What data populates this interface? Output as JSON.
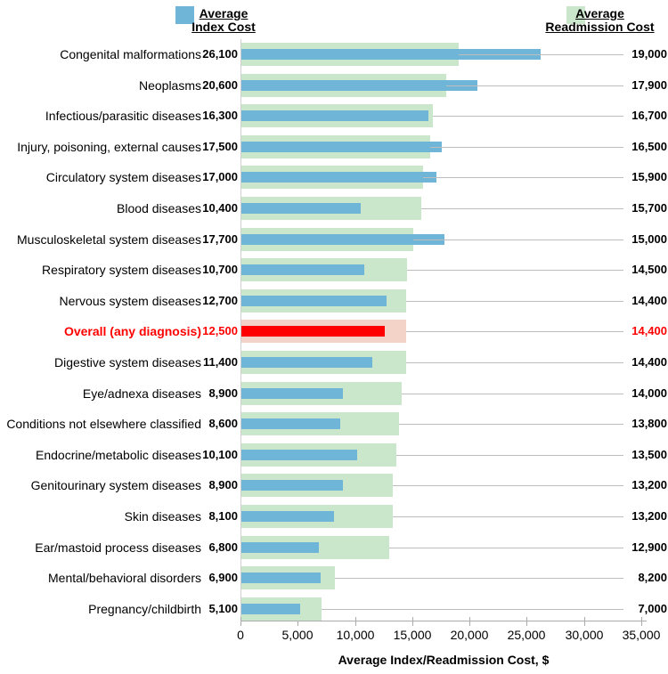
{
  "legend": {
    "index_cost": {
      "line1": "Average",
      "line2": "Index Cost"
    },
    "readmission_cost": {
      "line1": "Average",
      "line2": "Readmission Cost"
    }
  },
  "colors": {
    "index_bar": "#6fb5d8",
    "readmission_bar": "#cae6cb",
    "highlight_index_bar": "#ff0000",
    "highlight_readmission_bar": "#f3d2c8",
    "highlight_text": "#ff0000",
    "leader_line": "#bdbdbd",
    "axis_line": "#ababab"
  },
  "chart_data": {
    "type": "bar",
    "orientation": "horizontal",
    "title": "",
    "xlabel": "Average Index/Readmission Cost, $",
    "xlim": [
      0,
      35000
    ],
    "xticks": [
      0,
      5000,
      10000,
      15000,
      20000,
      25000,
      30000,
      35000
    ],
    "xtick_labels": [
      "0",
      "5,000",
      "10,000",
      "15,000",
      "20,000",
      "25,000",
      "30,000",
      "35,000"
    ],
    "grid": false,
    "legend_position": "top",
    "series_names": [
      "Average Index Cost",
      "Average Readmission Cost"
    ],
    "rows": [
      {
        "category": "Congenital malformations",
        "index_cost": 26100,
        "index_label": "26,100",
        "readmission_cost": 19000,
        "readmission_label": "19,000",
        "highlight": false
      },
      {
        "category": "Neoplasms",
        "index_cost": 20600,
        "index_label": "20,600",
        "readmission_cost": 17900,
        "readmission_label": "17,900",
        "highlight": false
      },
      {
        "category": "Infectious/parasitic diseases",
        "index_cost": 16300,
        "index_label": "16,300",
        "readmission_cost": 16700,
        "readmission_label": "16,700",
        "highlight": false
      },
      {
        "category": "Injury, poisoning, external causes",
        "index_cost": 17500,
        "index_label": "17,500",
        "readmission_cost": 16500,
        "readmission_label": "16,500",
        "highlight": false
      },
      {
        "category": "Circulatory system diseases",
        "index_cost": 17000,
        "index_label": "17,000",
        "readmission_cost": 15900,
        "readmission_label": "15,900",
        "highlight": false
      },
      {
        "category": "Blood diseases",
        "index_cost": 10400,
        "index_label": "10,400",
        "readmission_cost": 15700,
        "readmission_label": "15,700",
        "highlight": false
      },
      {
        "category": "Musculoskeletal system diseases",
        "index_cost": 17700,
        "index_label": "17,700",
        "readmission_cost": 15000,
        "readmission_label": "15,000",
        "highlight": false
      },
      {
        "category": "Respiratory system diseases",
        "index_cost": 10700,
        "index_label": "10,700",
        "readmission_cost": 14500,
        "readmission_label": "14,500",
        "highlight": false
      },
      {
        "category": "Nervous system diseases",
        "index_cost": 12700,
        "index_label": "12,700",
        "readmission_cost": 14400,
        "readmission_label": "14,400",
        "highlight": false
      },
      {
        "category": "Overall (any diagnosis)",
        "index_cost": 12500,
        "index_label": "12,500",
        "readmission_cost": 14400,
        "readmission_label": "14,400",
        "highlight": true
      },
      {
        "category": "Digestive system diseases",
        "index_cost": 11400,
        "index_label": "11,400",
        "readmission_cost": 14400,
        "readmission_label": "14,400",
        "highlight": false
      },
      {
        "category": "Eye/adnexa diseases",
        "index_cost": 8900,
        "index_label": "8,900",
        "readmission_cost": 14000,
        "readmission_label": "14,000",
        "highlight": false
      },
      {
        "category": "Conditions not elsewhere classified",
        "index_cost": 8600,
        "index_label": "8,600",
        "readmission_cost": 13800,
        "readmission_label": "13,800",
        "highlight": false
      },
      {
        "category": "Endocrine/metabolic diseases",
        "index_cost": 10100,
        "index_label": "10,100",
        "readmission_cost": 13500,
        "readmission_label": "13,500",
        "highlight": false
      },
      {
        "category": "Genitourinary system diseases",
        "index_cost": 8900,
        "index_label": "8,900",
        "readmission_cost": 13200,
        "readmission_label": "13,200",
        "highlight": false
      },
      {
        "category": "Skin diseases",
        "index_cost": 8100,
        "index_label": "8,100",
        "readmission_cost": 13200,
        "readmission_label": "13,200",
        "highlight": false
      },
      {
        "category": "Ear/mastoid process diseases",
        "index_cost": 6800,
        "index_label": "6,800",
        "readmission_cost": 12900,
        "readmission_label": "12,900",
        "highlight": false
      },
      {
        "category": "Mental/behavioral disorders",
        "index_cost": 6900,
        "index_label": "6,900",
        "readmission_cost": 8200,
        "readmission_label": "8,200",
        "highlight": false
      },
      {
        "category": "Pregnancy/childbirth",
        "index_cost": 5100,
        "index_label": "5,100",
        "readmission_cost": 7000,
        "readmission_label": "7,000",
        "highlight": false
      }
    ]
  }
}
